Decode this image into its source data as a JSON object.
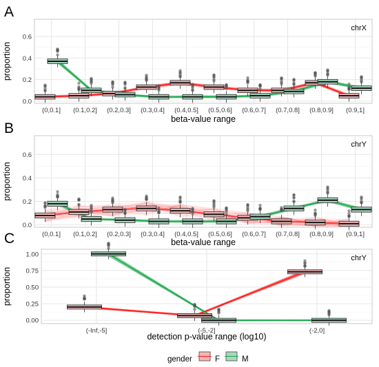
{
  "colors": {
    "F": "#e85a5a",
    "M": "#29a66a",
    "F_line": "#ff1a1a",
    "M_line": "#1aa64d",
    "panel_bg": "#ffffff",
    "grid": "#e6e6e6"
  },
  "legend": {
    "title": "gender",
    "F": "F",
    "M": "M"
  },
  "chart_data": [
    {
      "panel": "A",
      "type": "box",
      "strip_label": "chrX",
      "xlabel": "beta-value range",
      "ylabel": "proportion",
      "ylim": [
        -0.02,
        0.76
      ],
      "yticks": [
        0.0,
        0.2,
        0.4,
        0.6
      ],
      "ytick_labels": [
        "0.0",
        "0.2",
        "0.4",
        "0.6"
      ],
      "categories": [
        "(0,0.1]",
        "(0.1,0.2]",
        "(0.2,0.3]",
        "(0.3,0.4]",
        "(0.4,0.5]",
        "(0.5,0.6]",
        "(0.6,0.7]",
        "(0.7,0.8]",
        "(0.8,0.9]",
        "(0.9,1]"
      ],
      "series": [
        {
          "name": "F",
          "medians": [
            0.04,
            0.05,
            0.07,
            0.13,
            0.17,
            0.13,
            0.1,
            0.1,
            0.17,
            0.05
          ]
        },
        {
          "name": "M",
          "medians": [
            0.37,
            0.1,
            0.06,
            0.04,
            0.04,
            0.04,
            0.05,
            0.09,
            0.18,
            0.12
          ]
        }
      ]
    },
    {
      "panel": "B",
      "type": "box",
      "strip_label": "chrY",
      "xlabel": "beta-value range",
      "ylabel": "proportion",
      "ylim": [
        -0.02,
        0.76
      ],
      "yticks": [
        0.0,
        0.2,
        0.4,
        0.6
      ],
      "ytick_labels": [
        "0.0",
        "0.2",
        "0.4",
        "0.6"
      ],
      "categories": [
        "(0,0.1]",
        "(0.1,0.2]",
        "(0.2,0.3]",
        "(0.3,0.4]",
        "(0.4,0.5]",
        "(0.5,0.6]",
        "(0.6,0.7]",
        "(0.7,0.8]",
        "(0.8,0.9]",
        "(0.9,1]"
      ],
      "series": [
        {
          "name": "F",
          "medians": [
            0.08,
            0.11,
            0.13,
            0.14,
            0.12,
            0.09,
            0.06,
            0.03,
            0.02,
            0.01
          ]
        },
        {
          "name": "M",
          "medians": [
            0.18,
            0.05,
            0.04,
            0.03,
            0.03,
            0.03,
            0.07,
            0.14,
            0.21,
            0.13
          ]
        }
      ]
    },
    {
      "panel": "C",
      "type": "box",
      "strip_label": "chrY",
      "xlabel": "detection p-value range (log10)",
      "ylabel": "proportion",
      "ylim": [
        -0.05,
        1.07
      ],
      "yticks": [
        0.0,
        0.25,
        0.5,
        0.75,
        1.0
      ],
      "ytick_labels": [
        "0.00",
        "0.25",
        "0.50",
        "0.75",
        "1.00"
      ],
      "categories": [
        "(-Inf,-5]",
        "(-5,-2]",
        "(-2,0]"
      ],
      "series": [
        {
          "name": "F",
          "medians": [
            0.2,
            0.07,
            0.73
          ]
        },
        {
          "name": "M",
          "medians": [
            1.0,
            0.0,
            0.0
          ]
        }
      ]
    }
  ]
}
